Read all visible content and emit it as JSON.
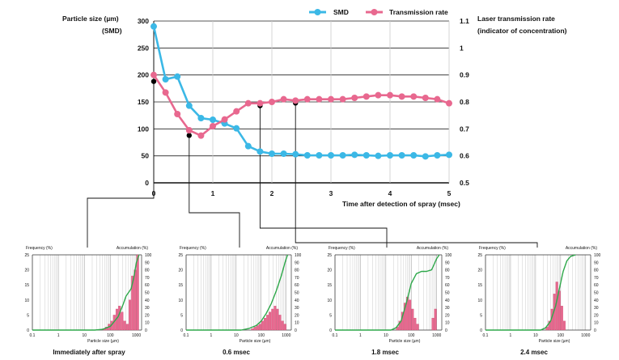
{
  "colors": {
    "smd": "#3bb8e6",
    "transmission": "#e8688f",
    "marker": "#000000",
    "grid": "#cccccc",
    "cum_line": "#2ea84a",
    "hist_bar": "#e8688f",
    "axis": "#111111"
  },
  "chart_data": [
    {
      "type": "line",
      "title": "",
      "xlabel": "Time after detection of spray (msec)",
      "ylabel": "Particle size (µm)",
      "ylabel_sub": "(SMD)",
      "y2label": "Laser transmission rate",
      "y2label_sub": "(indicator of concentration)",
      "xlim": [
        0,
        5
      ],
      "ylim": [
        0,
        300
      ],
      "y2lim": [
        0.5,
        1.1
      ],
      "x_ticks": [
        "0",
        "1",
        "2",
        "3",
        "4",
        "5"
      ],
      "y_ticks": [
        "0",
        "50",
        "100",
        "150",
        "200",
        "250",
        "300"
      ],
      "y2_ticks": [
        "0.5",
        "0.6",
        "0.7",
        "0.8",
        "0.9",
        "1",
        "1.1"
      ],
      "legend_position": "top-right",
      "series": [
        {
          "name": "SMD",
          "axis": "left",
          "x": [
            0,
            0.2,
            0.4,
            0.6,
            0.8,
            1.0,
            1.2,
            1.4,
            1.6,
            1.8,
            2.0,
            2.2,
            2.4,
            2.6,
            2.8,
            3.0,
            3.2,
            3.4,
            3.6,
            3.8,
            4.0,
            4.2,
            4.4,
            4.6,
            4.8,
            5.0
          ],
          "values": [
            290,
            192,
            197,
            143,
            120,
            117,
            110,
            101,
            68,
            58,
            54,
            54,
            53,
            51,
            51,
            51,
            51,
            52,
            51,
            50,
            51,
            51,
            51,
            49,
            51,
            52
          ]
        },
        {
          "name": "Transmission rate",
          "axis": "right",
          "x": [
            0,
            0.2,
            0.4,
            0.6,
            0.8,
            1.0,
            1.2,
            1.4,
            1.6,
            1.8,
            2.0,
            2.2,
            2.4,
            2.6,
            2.8,
            3.0,
            3.2,
            3.4,
            3.6,
            3.8,
            4.0,
            4.2,
            4.4,
            4.6,
            4.8,
            5.0
          ],
          "values": [
            0.9,
            0.835,
            0.755,
            0.695,
            0.675,
            0.71,
            0.735,
            0.765,
            0.795,
            0.795,
            0.8,
            0.81,
            0.805,
            0.81,
            0.81,
            0.81,
            0.81,
            0.815,
            0.82,
            0.825,
            0.825,
            0.82,
            0.82,
            0.815,
            0.81,
            0.795
          ]
        }
      ],
      "markers": [
        {
          "x": 0.0,
          "y": 188
        },
        {
          "x": 0.6,
          "y": 88
        },
        {
          "x": 1.8,
          "y": 143
        },
        {
          "x": 2.4,
          "y": 148
        }
      ]
    },
    {
      "type": "bar",
      "caption": "Immediately after spray",
      "ylabel": "Frequency (%)",
      "y2label": "Accumulation (%)",
      "xlabel": "Particle size (µm)",
      "x_ticks": [
        "0.1",
        "1",
        "10",
        "100",
        "1000"
      ],
      "y_ticks": [
        "0",
        "5",
        "10",
        "15",
        "20",
        "25"
      ],
      "y2_ticks": [
        "0",
        "10",
        "20",
        "30",
        "40",
        "50",
        "60",
        "70",
        "80",
        "90",
        "100"
      ],
      "ylim": [
        0,
        25
      ],
      "y2lim": [
        0,
        100
      ],
      "bins_log10": [
        1.75,
        1.85,
        1.95,
        2.05,
        2.15,
        2.25,
        2.35,
        2.45,
        2.55,
        2.65,
        2.75,
        2.85,
        2.95,
        3.05
      ],
      "frequency": [
        0.5,
        1,
        2,
        3,
        5,
        7,
        8,
        6,
        3,
        2,
        10,
        18,
        20,
        25
      ],
      "accumulation_log10": [
        1.4,
        1.7,
        2.0,
        2.3,
        2.5,
        2.6,
        2.7,
        2.8,
        2.9,
        3.0,
        3.1
      ],
      "accumulation": [
        0,
        1,
        5,
        18,
        35,
        45,
        50,
        55,
        70,
        90,
        100
      ]
    },
    {
      "type": "bar",
      "caption": "0.6 msec",
      "ylabel": "Frequency (%)",
      "y2label": "Accumulation (%)",
      "xlabel": "Particle size (µm)",
      "x_ticks": [
        "0.1",
        "1",
        "10",
        "100",
        "1000"
      ],
      "y_ticks": [
        "0",
        "5",
        "10",
        "15",
        "20",
        "25"
      ],
      "y2_ticks": [
        "0",
        "10",
        "20",
        "30",
        "40",
        "50",
        "60",
        "70",
        "80",
        "90",
        "100"
      ],
      "ylim": [
        0,
        25
      ],
      "y2lim": [
        0,
        100
      ],
      "bins_log10": [
        1.65,
        1.75,
        1.85,
        1.95,
        2.05,
        2.15,
        2.25,
        2.35,
        2.45,
        2.55,
        2.65,
        2.75,
        2.85,
        2.95
      ],
      "frequency": [
        0.5,
        1,
        1.5,
        2,
        3,
        4,
        5,
        6,
        7,
        8,
        7,
        5,
        3,
        2
      ],
      "accumulation_log10": [
        1.2,
        1.5,
        1.8,
        2.0,
        2.2,
        2.4,
        2.6,
        2.8,
        2.95,
        3.05
      ],
      "accumulation": [
        0,
        2,
        6,
        12,
        22,
        35,
        52,
        72,
        90,
        100
      ]
    },
    {
      "type": "bar",
      "caption": "1.8 msec",
      "ylabel": "Frequency (%)",
      "y2label": "Accumulation (%)",
      "xlabel": "Particle size (µm)",
      "x_ticks": [
        "0.1",
        "1",
        "10",
        "100",
        "1000"
      ],
      "y_ticks": [
        "0",
        "5",
        "10",
        "15",
        "20",
        "25"
      ],
      "y2_ticks": [
        "0",
        "10",
        "20",
        "30",
        "40",
        "50",
        "60",
        "70",
        "80",
        "90",
        "100"
      ],
      "ylim": [
        0,
        25
      ],
      "y2lim": [
        0,
        100
      ],
      "bins_log10": [
        1.45,
        1.55,
        1.65,
        1.75,
        1.85,
        1.95,
        2.05,
        2.15,
        2.25,
        2.85,
        2.95
      ],
      "frequency": [
        1,
        3,
        6,
        9,
        11,
        10,
        7,
        4,
        2,
        4,
        7
      ],
      "accumulation_log10": [
        1.2,
        1.4,
        1.6,
        1.8,
        2.0,
        2.2,
        2.4,
        2.6,
        2.8,
        3.0,
        3.1
      ],
      "accumulation": [
        0,
        3,
        12,
        35,
        62,
        75,
        78,
        78,
        80,
        95,
        100
      ]
    },
    {
      "type": "bar",
      "caption": "2.4 msec",
      "ylabel": "Frequency (%)",
      "y2label": "Accumulation (%)",
      "xlabel": "Particle size (µm)",
      "x_ticks": [
        "0.1",
        "1",
        "10",
        "100",
        "1000"
      ],
      "y_ticks": [
        "0",
        "5",
        "10",
        "15",
        "20",
        "25"
      ],
      "y2_ticks": [
        "0",
        "10",
        "20",
        "30",
        "40",
        "50",
        "60",
        "70",
        "80",
        "90",
        "100"
      ],
      "ylim": [
        0,
        25
      ],
      "y2lim": [
        0,
        100
      ],
      "bins_log10": [
        1.45,
        1.55,
        1.65,
        1.75,
        1.85,
        1.95,
        2.05,
        2.15
      ],
      "frequency": [
        1,
        3,
        7,
        12,
        16,
        13,
        8,
        3
      ],
      "accumulation_log10": [
        1.2,
        1.4,
        1.6,
        1.8,
        1.95,
        2.1,
        2.25,
        2.4,
        2.6
      ],
      "accumulation": [
        0,
        3,
        12,
        32,
        55,
        78,
        92,
        98,
        100
      ]
    }
  ]
}
